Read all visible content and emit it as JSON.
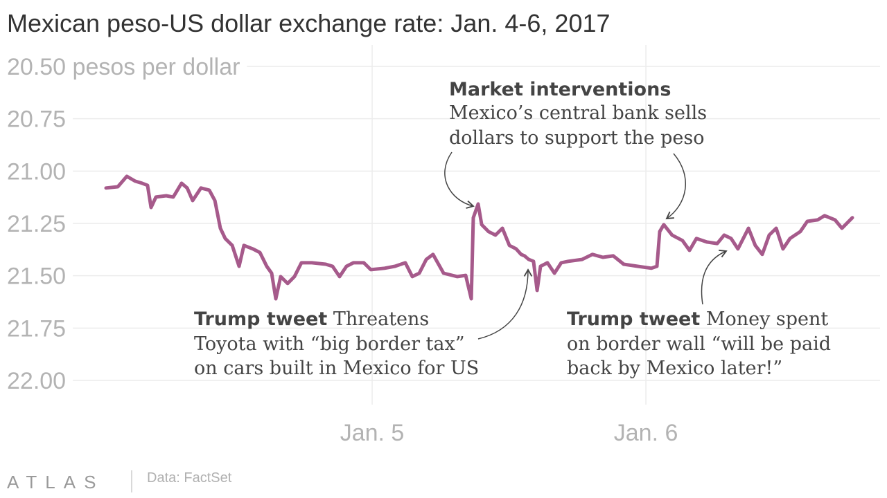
{
  "chart_data": {
    "type": "line",
    "title": "Mexican peso-US dollar exchange rate: Jan. 4-6, 2017",
    "source": "Data: FactSet",
    "brand": "ATLAS",
    "xlim": [
      0,
      68
    ],
    "xticks": [
      {
        "value": 24,
        "label": "Jan. 5"
      },
      {
        "value": 48,
        "label": "Jan. 6"
      }
    ],
    "ylim": [
      22.0,
      20.5
    ],
    "yticks": [
      {
        "value": 20.5,
        "label": "20.50 pesos per dollar"
      },
      {
        "value": 20.75,
        "label": "20.75"
      },
      {
        "value": 21,
        "label": "21.00"
      },
      {
        "value": 21.25,
        "label": "21.25"
      },
      {
        "value": 21.5,
        "label": "21.50"
      },
      {
        "value": 21.75,
        "label": "21.75"
      },
      {
        "value": 22,
        "label": "22.00"
      }
    ],
    "grid": true,
    "series": [
      {
        "name": "Exchange rate",
        "color": "#a65a8b",
        "x": [
          0.67,
          1.7,
          2.49,
          3.22,
          3.83,
          4.31,
          4.62,
          5.04,
          5.95,
          6.56,
          7.29,
          7.78,
          8.26,
          8.99,
          9.72,
          10.21,
          10.69,
          11.12,
          11.73,
          12.33,
          12.76,
          13.55,
          14.16,
          14.76,
          15.19,
          15.55,
          15.98,
          16.59,
          17.19,
          17.8,
          18.71,
          19.93,
          20.53,
          21.14,
          21.75,
          22.36,
          23.27,
          23.88,
          25.09,
          26.0,
          26.91,
          27.52,
          28.13,
          28.74,
          29.34,
          30.26,
          31.47,
          32.2,
          32.69,
          32.87,
          33.29,
          33.6,
          34.2,
          34.81,
          35.42,
          36.03,
          36.63,
          37.06,
          37.36,
          37.73,
          38.15,
          38.46,
          38.76,
          39.37,
          39.98,
          40.58,
          41.19,
          42.4,
          43.32,
          44.23,
          45.14,
          46.05,
          47.27,
          48.48,
          48.97,
          49.21,
          49.57,
          50.3,
          51.21,
          51.82,
          52.43,
          53.34,
          54.25,
          54.86,
          55.47,
          56.07,
          56.99,
          57.59,
          58.2,
          58.81,
          59.42,
          60.02,
          60.63,
          61.54,
          62.15,
          63.06,
          63.67,
          64.58,
          65.19,
          66.1
        ],
        "values": [
          21.081,
          21.075,
          21.025,
          21.048,
          21.058,
          21.068,
          21.174,
          21.124,
          21.118,
          21.124,
          21.058,
          21.081,
          21.141,
          21.081,
          21.091,
          21.141,
          21.273,
          21.322,
          21.355,
          21.455,
          21.355,
          21.372,
          21.389,
          21.455,
          21.488,
          21.61,
          21.504,
          21.537,
          21.504,
          21.438,
          21.438,
          21.445,
          21.455,
          21.504,
          21.455,
          21.438,
          21.438,
          21.471,
          21.464,
          21.455,
          21.438,
          21.504,
          21.488,
          21.422,
          21.398,
          21.488,
          21.504,
          21.498,
          21.61,
          21.223,
          21.157,
          21.256,
          21.289,
          21.306,
          21.273,
          21.355,
          21.372,
          21.398,
          21.405,
          21.422,
          21.431,
          21.57,
          21.455,
          21.438,
          21.488,
          21.438,
          21.431,
          21.422,
          21.398,
          21.412,
          21.405,
          21.445,
          21.455,
          21.464,
          21.455,
          21.289,
          21.256,
          21.306,
          21.332,
          21.379,
          21.322,
          21.339,
          21.346,
          21.306,
          21.322,
          21.372,
          21.273,
          21.355,
          21.398,
          21.306,
          21.273,
          21.372,
          21.322,
          21.289,
          21.24,
          21.233,
          21.213,
          21.233,
          21.273,
          21.223
        ]
      }
    ],
    "annotations": [
      {
        "title": "Market interventions",
        "lines": [
          "Mexico’s central bank sells",
          "dollars to support the peso"
        ]
      },
      {
        "title": "Trump tweet",
        "lines": [
          " Threatens",
          "Toyota with “big border tax”",
          "on cars built in Mexico for US"
        ]
      },
      {
        "title": "Trump tweet",
        "lines": [
          " Money spent",
          "on border wall “will be paid",
          "back by Mexico later!”"
        ]
      }
    ]
  }
}
